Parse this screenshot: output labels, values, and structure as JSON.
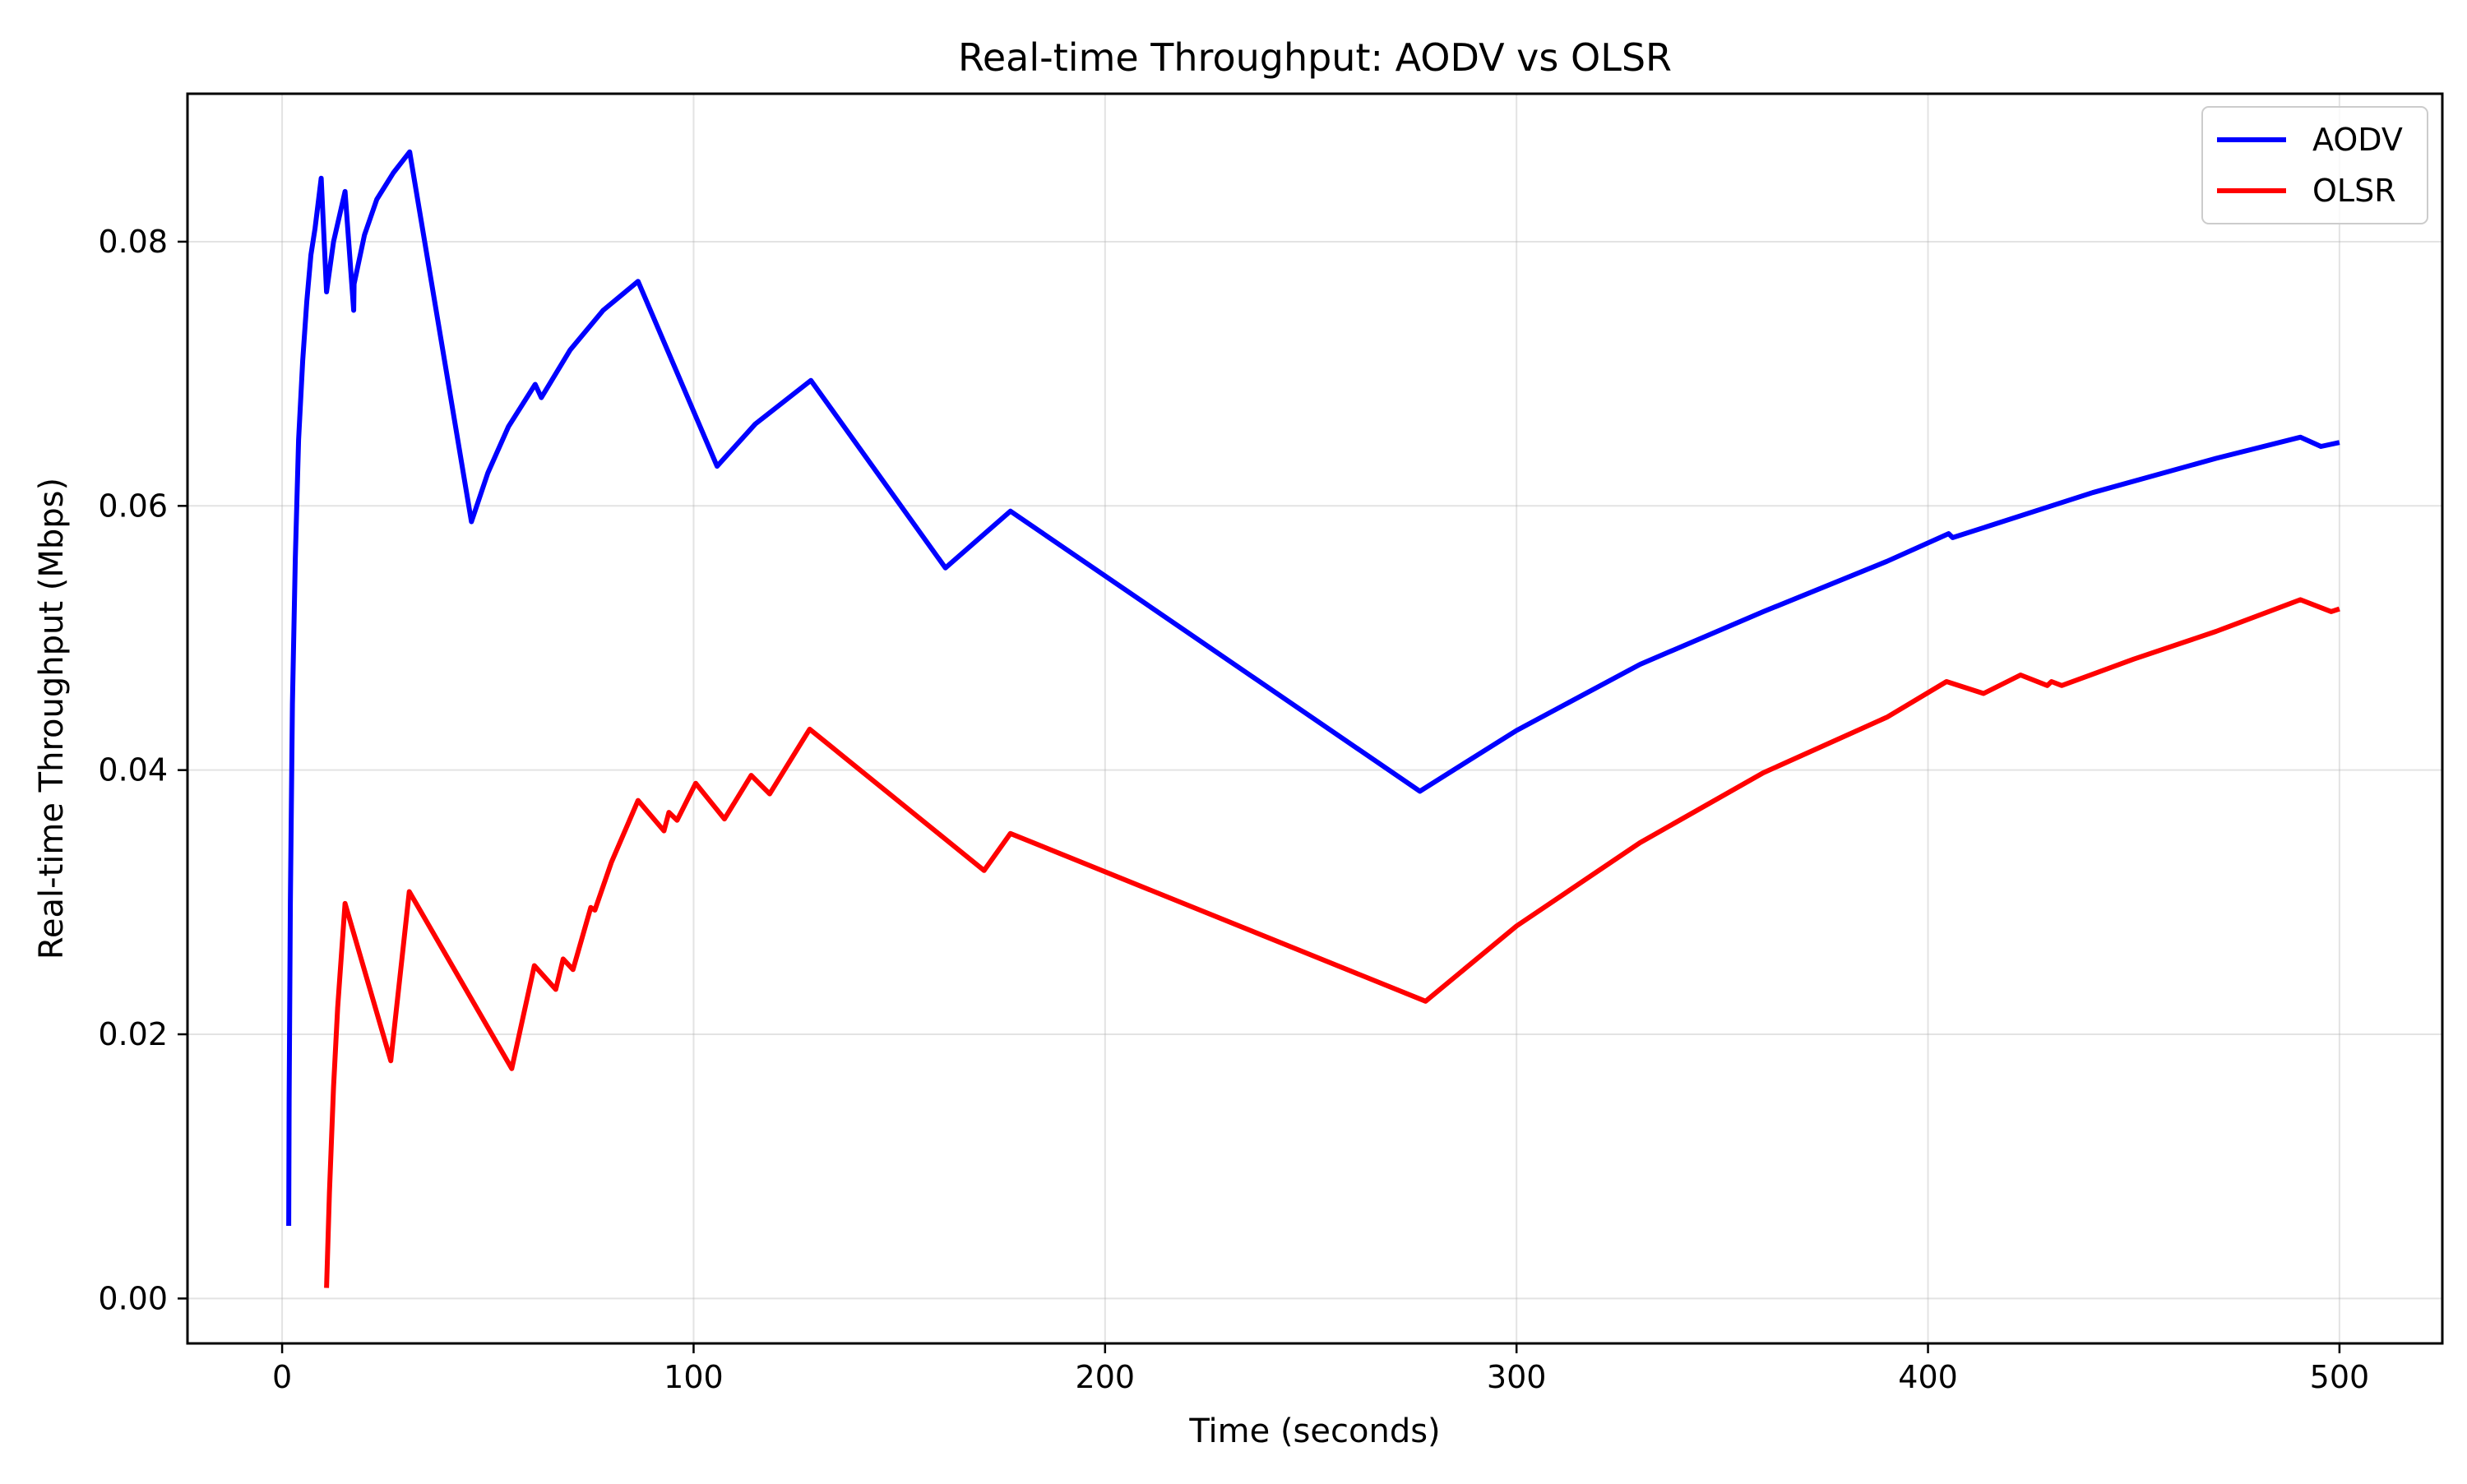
{
  "chart_data": {
    "type": "line",
    "title": "Real-time Throughput: AODV vs OLSR",
    "xlabel": "Time (seconds)",
    "ylabel": "Real-time Throughput (Mbps)",
    "xlim": [
      -23,
      525
    ],
    "ylim": [
      -0.0034,
      0.0912
    ],
    "xticks": [
      0,
      100,
      200,
      300,
      400,
      500
    ],
    "xtick_labels": [
      "0",
      "100",
      "200",
      "300",
      "400",
      "500"
    ],
    "yticks": [
      0.0,
      0.02,
      0.04,
      0.06,
      0.08
    ],
    "ytick_labels": [
      "0.00",
      "0.02",
      "0.04",
      "0.06",
      "0.08"
    ],
    "grid": true,
    "legend_position": "top-right",
    "colors": {
      "AODV": "#0000ff",
      "OLSR": "#ff0000"
    },
    "series": [
      {
        "name": "AODV",
        "color": "#0000ff",
        "points": [
          [
            1.6,
            0.0055
          ],
          [
            1.7,
            0.015
          ],
          [
            2.0,
            0.03
          ],
          [
            2.5,
            0.045
          ],
          [
            3.2,
            0.056
          ],
          [
            4.0,
            0.065
          ],
          [
            5.0,
            0.071
          ],
          [
            6.0,
            0.0755
          ],
          [
            7.0,
            0.079
          ],
          [
            8.0,
            0.081
          ],
          [
            9.5,
            0.0848
          ],
          [
            10.8,
            0.0762
          ],
          [
            12.5,
            0.08
          ],
          [
            15.3,
            0.0838
          ],
          [
            17.4,
            0.0748
          ],
          [
            17.5,
            0.0768
          ],
          [
            20.0,
            0.0805
          ],
          [
            23.0,
            0.0832
          ],
          [
            27.0,
            0.0852
          ],
          [
            31.0,
            0.0868
          ],
          [
            46.0,
            0.0588
          ],
          [
            50.0,
            0.0625
          ],
          [
            55.0,
            0.066
          ],
          [
            61.5,
            0.0692
          ],
          [
            63.0,
            0.0682
          ],
          [
            70.0,
            0.0718
          ],
          [
            78.0,
            0.0748
          ],
          [
            86.5,
            0.077
          ],
          [
            105.7,
            0.063
          ],
          [
            115.0,
            0.0662
          ],
          [
            128.5,
            0.0695
          ],
          [
            161.2,
            0.0553
          ],
          [
            177.0,
            0.0596
          ],
          [
            276.5,
            0.0384
          ],
          [
            300.0,
            0.043
          ],
          [
            330.0,
            0.048
          ],
          [
            360.0,
            0.052
          ],
          [
            390.0,
            0.0558
          ],
          [
            405.0,
            0.0579
          ],
          [
            406.0,
            0.0576
          ],
          [
            440.0,
            0.061
          ],
          [
            470.0,
            0.0636
          ],
          [
            490.5,
            0.0652
          ],
          [
            495.5,
            0.0645
          ],
          [
            500.0,
            0.0648
          ]
        ]
      },
      {
        "name": "OLSR",
        "color": "#ff0000",
        "points": [
          [
            10.8,
            0.0008
          ],
          [
            11.5,
            0.008
          ],
          [
            12.5,
            0.016
          ],
          [
            13.5,
            0.022
          ],
          [
            15.3,
            0.0299
          ],
          [
            26.4,
            0.018
          ],
          [
            30.9,
            0.0308
          ],
          [
            55.8,
            0.0174
          ],
          [
            61.3,
            0.0252
          ],
          [
            66.5,
            0.0234
          ],
          [
            68.3,
            0.0257
          ],
          [
            70.7,
            0.0249
          ],
          [
            75.0,
            0.0296
          ],
          [
            76.0,
            0.0294
          ],
          [
            80.0,
            0.033
          ],
          [
            86.5,
            0.0377
          ],
          [
            92.8,
            0.0354
          ],
          [
            94.0,
            0.0368
          ],
          [
            96.0,
            0.0362
          ],
          [
            100.5,
            0.039
          ],
          [
            107.5,
            0.0363
          ],
          [
            114.0,
            0.0396
          ],
          [
            118.5,
            0.0382
          ],
          [
            128.2,
            0.0431
          ],
          [
            170.6,
            0.0324
          ],
          [
            177.0,
            0.0352
          ],
          [
            277.9,
            0.0225
          ],
          [
            300.0,
            0.0282
          ],
          [
            330.0,
            0.0345
          ],
          [
            360.0,
            0.0398
          ],
          [
            390.0,
            0.044
          ],
          [
            404.5,
            0.0467
          ],
          [
            413.5,
            0.0458
          ],
          [
            422.5,
            0.0472
          ],
          [
            429.0,
            0.0464
          ],
          [
            430.0,
            0.0467
          ],
          [
            432.5,
            0.0464
          ],
          [
            450.0,
            0.0484
          ],
          [
            470.0,
            0.0505
          ],
          [
            490.5,
            0.0529
          ],
          [
            498.0,
            0.052
          ],
          [
            500.0,
            0.0522
          ]
        ]
      }
    ]
  }
}
